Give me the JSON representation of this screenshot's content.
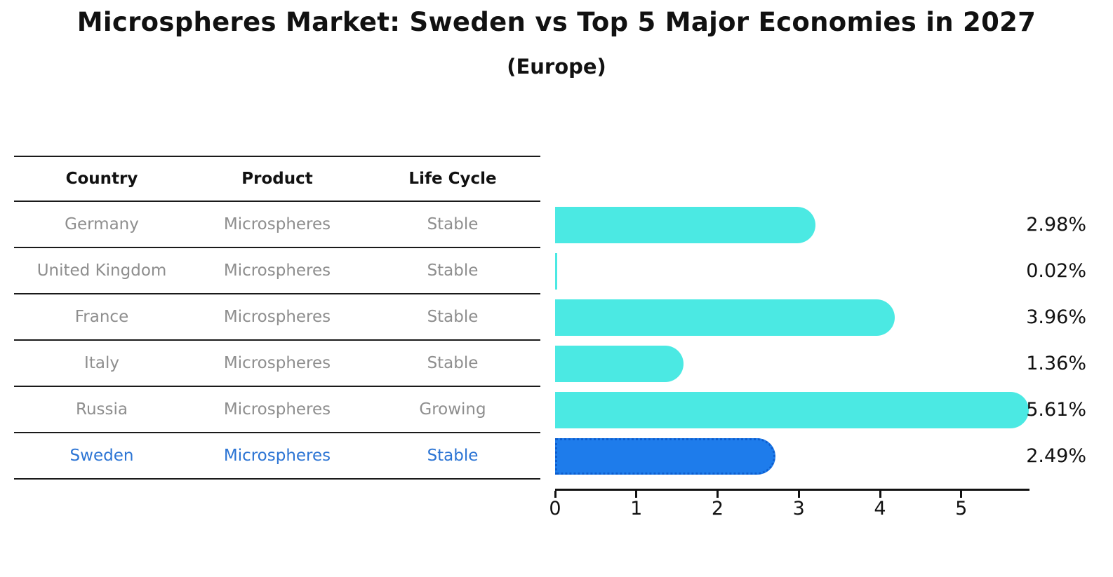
{
  "title": "Microspheres Market: Sweden vs Top 5 Major Economies in 2027",
  "subtitle": "(Europe)",
  "table": {
    "headers": [
      "Country",
      "Product",
      "Life Cycle"
    ],
    "rows": [
      {
        "country": "Germany",
        "product": "Microspheres",
        "life_cycle": "Stable"
      },
      {
        "country": "United Kingdom",
        "product": "Microspheres",
        "life_cycle": "Stable"
      },
      {
        "country": "France",
        "product": "Microspheres",
        "life_cycle": "Stable"
      },
      {
        "country": "Italy",
        "product": "Microspheres",
        "life_cycle": "Stable"
      },
      {
        "country": "Russia",
        "product": "Microspheres",
        "life_cycle": "Growing"
      },
      {
        "country": "Sweden",
        "product": "Microspheres",
        "life_cycle": "Stable"
      }
    ],
    "highlight_row": "Sweden"
  },
  "chart_data": {
    "type": "bar",
    "orientation": "horizontal",
    "title": "Microspheres Market: Sweden vs Top 5 Major Economies in 2027 (Europe)",
    "categories": [
      "Germany",
      "United Kingdom",
      "France",
      "Italy",
      "Russia",
      "Sweden"
    ],
    "values": [
      2.98,
      0.02,
      3.96,
      1.36,
      5.61,
      2.49
    ],
    "value_labels": [
      "2.98%",
      "0.02%",
      "3.96%",
      "1.36%",
      "5.61%",
      "2.49%"
    ],
    "x_ticks": [
      0,
      1,
      2,
      3,
      4,
      5
    ],
    "xlim": [
      0,
      5.84
    ],
    "grid": false,
    "legend": false,
    "highlight_index": 5
  },
  "colors": {
    "background": "#FFFFFF",
    "bar": "#4BE9E3",
    "highlight_bar": "#1E7CEB",
    "highlight_bar_border": "#0D5ECF",
    "highlight_text": "#2B74D4",
    "table_line": "#1A1A1A",
    "table_header_text": "#111111",
    "table_row_text": "#8E8E8E",
    "axis": "#111111",
    "value_label_text": "#111111"
  }
}
